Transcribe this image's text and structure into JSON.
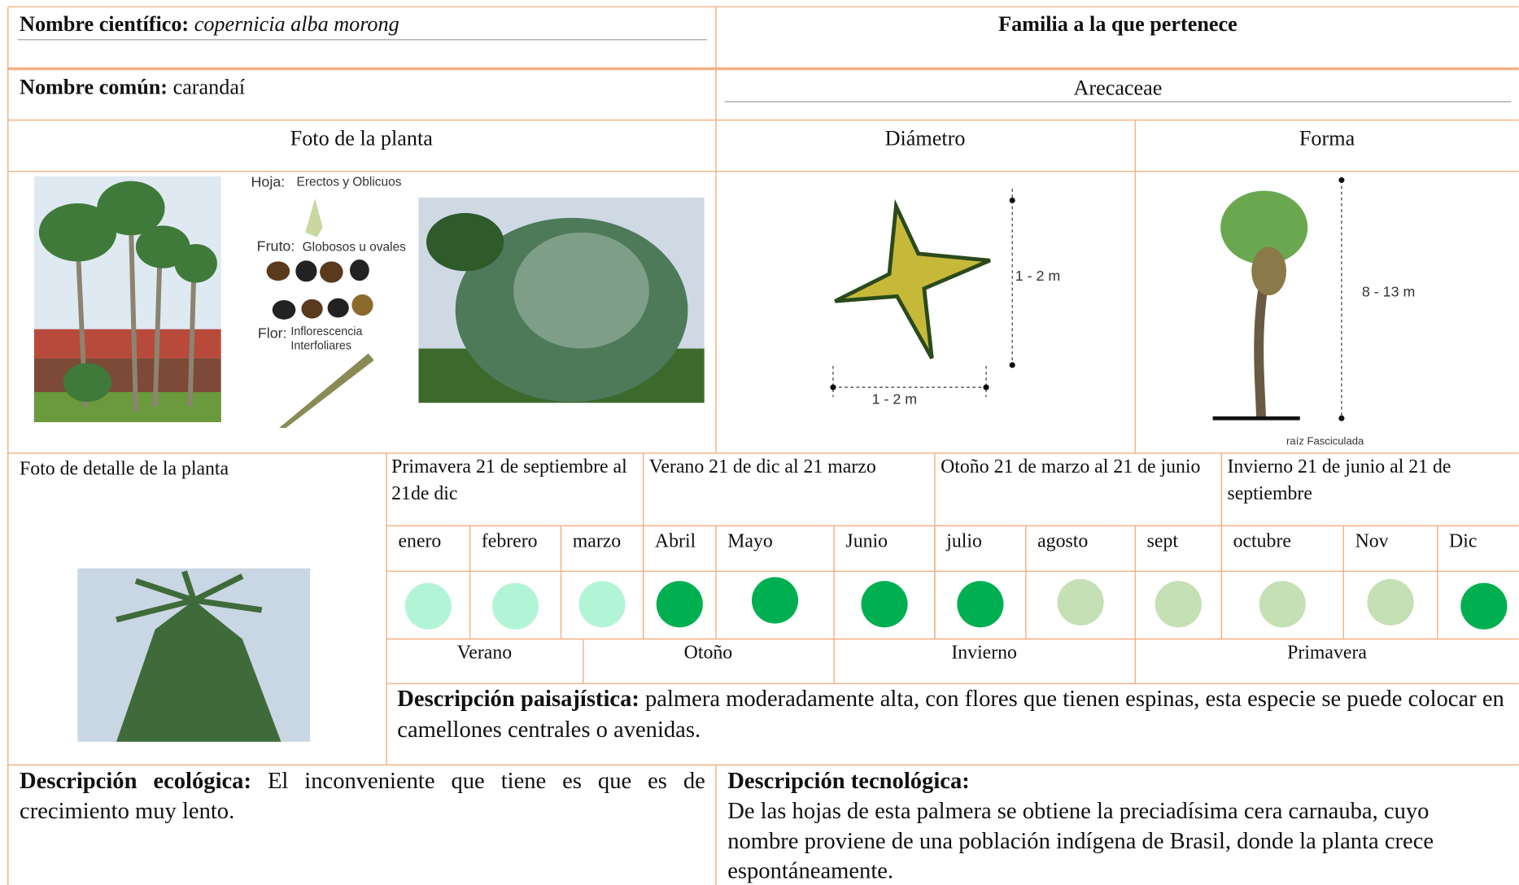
{
  "header": {
    "scientific_label": "Nombre científico:",
    "scientific_name": "copernicia alba morong",
    "family_label": "Familia a la que pertenece",
    "common_label": "Nombre común:",
    "common_name": "carandaí",
    "family": "Arecaceae"
  },
  "columns": {
    "photo": "Foto de la planta",
    "diameter": "Diámetro",
    "shape": "Forma",
    "detail": "Foto de detalle de la planta"
  },
  "image_labels": {
    "leaf": "Hoja:",
    "leaf_desc": "Erectos y Oblicuos",
    "fruit": "Fruto:",
    "fruit_desc": "Globosos u ovales",
    "flower": "Flor:",
    "flower_desc": "Inflorescencia Interfoliares",
    "diameter_h": "1 - 2 m",
    "diameter_w": "1 - 2 m",
    "height": "8 - 13 m",
    "root": "raíz Fasciculada"
  },
  "seasons": [
    "Primavera 21 de septiembre al 21de dic",
    "Verano 21 de dic al 21 marzo",
    "Otoño 21 de marzo al 21 de junio",
    "Invierno 21 de junio al 21 de septiembre"
  ],
  "months": [
    {
      "name": "enero",
      "color": "#b2f5d6"
    },
    {
      "name": "febrero",
      "color": "#b2f5d6"
    },
    {
      "name": "marzo",
      "color": "#b2f5d6"
    },
    {
      "name": "Abril",
      "color": "#00b050"
    },
    {
      "name": "Mayo",
      "color": "#00b050"
    },
    {
      "name": "Junio",
      "color": "#00b050"
    },
    {
      "name": "julio",
      "color": "#00b050"
    },
    {
      "name": "agosto",
      "color": "#c5e0b4"
    },
    {
      "name": "sept",
      "color": "#c5e0b4"
    },
    {
      "name": "octubre",
      "color": "#c5e0b4"
    },
    {
      "name": "Nov",
      "color": "#c5e0b4"
    },
    {
      "name": "Dic",
      "color": "#00b050"
    }
  ],
  "season_bar": [
    "Verano",
    "Otoño",
    "Invierno",
    "Primavera"
  ],
  "landscape": {
    "label": "Descripción paisajística:",
    "text": "palmera moderadamente alta, con flores que tienen espinas, esta especie se puede colocar en camellones centrales o avenidas."
  },
  "ecological": {
    "label": "Descripción ecológica:",
    "text": "El inconveniente que tiene es que es de crecimiento muy lento."
  },
  "technological": {
    "label": "Descripción tecnológica:",
    "text": "De las hojas de esta palmera se obtiene la preciadísima cera carnauba, cuyo nombre proviene de una población indígena de Brasil, donde la planta crece espontáneamente."
  }
}
